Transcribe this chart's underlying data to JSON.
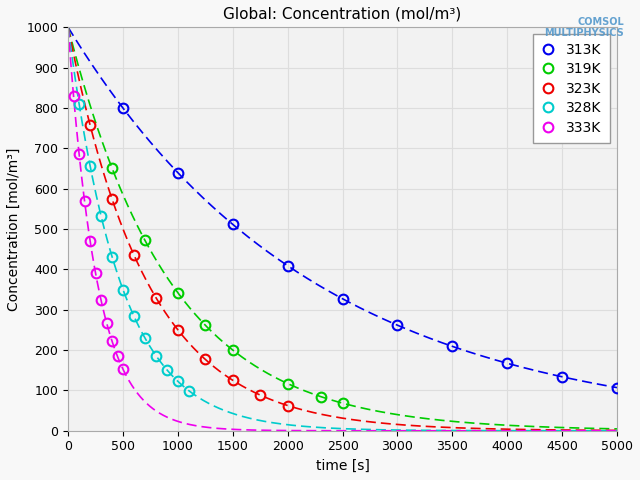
{
  "title": "Global: Concentration (mol/m³)",
  "xlabel": "time [s]",
  "ylabel": "Concentration [mol/m³]",
  "xlim": [
    0,
    5000
  ],
  "ylim": [
    0,
    1000
  ],
  "xticks": [
    0,
    500,
    1000,
    1500,
    2000,
    2500,
    3000,
    3500,
    4000,
    4500,
    5000
  ],
  "yticks": [
    0,
    100,
    200,
    300,
    400,
    500,
    600,
    700,
    800,
    900,
    1000
  ],
  "series": [
    {
      "label": "313K",
      "color": "#0000EE",
      "k": 0.000447,
      "marker_times": [
        500,
        1000,
        1500,
        2000,
        2500,
        3000,
        3500,
        4000,
        4500,
        5000
      ]
    },
    {
      "label": "319K",
      "color": "#00CC00",
      "k": 0.001073,
      "marker_times": [
        400,
        700,
        1000,
        1250,
        1500,
        2000,
        2300,
        2500
      ]
    },
    {
      "label": "323K",
      "color": "#EE0000",
      "k": 0.001386,
      "marker_times": [
        200,
        400,
        600,
        800,
        1000,
        1250,
        1500,
        1750,
        2000
      ]
    },
    {
      "label": "328K",
      "color": "#00CCCC",
      "k": 0.0021,
      "marker_times": [
        100,
        200,
        300,
        400,
        500,
        600,
        700,
        800,
        900,
        1000,
        1100
      ]
    },
    {
      "label": "333K",
      "color": "#EE00EE",
      "k": 0.00376,
      "marker_times": [
        50,
        100,
        150,
        200,
        250,
        300,
        350,
        400,
        450,
        500
      ]
    }
  ],
  "bg_color": "#F8F8F8",
  "plot_bg_color": "#F2F2F2",
  "grid_color": "#DDDDDD",
  "title_fontsize": 11,
  "axis_label_fontsize": 10,
  "tick_fontsize": 9,
  "legend_fontsize": 10
}
